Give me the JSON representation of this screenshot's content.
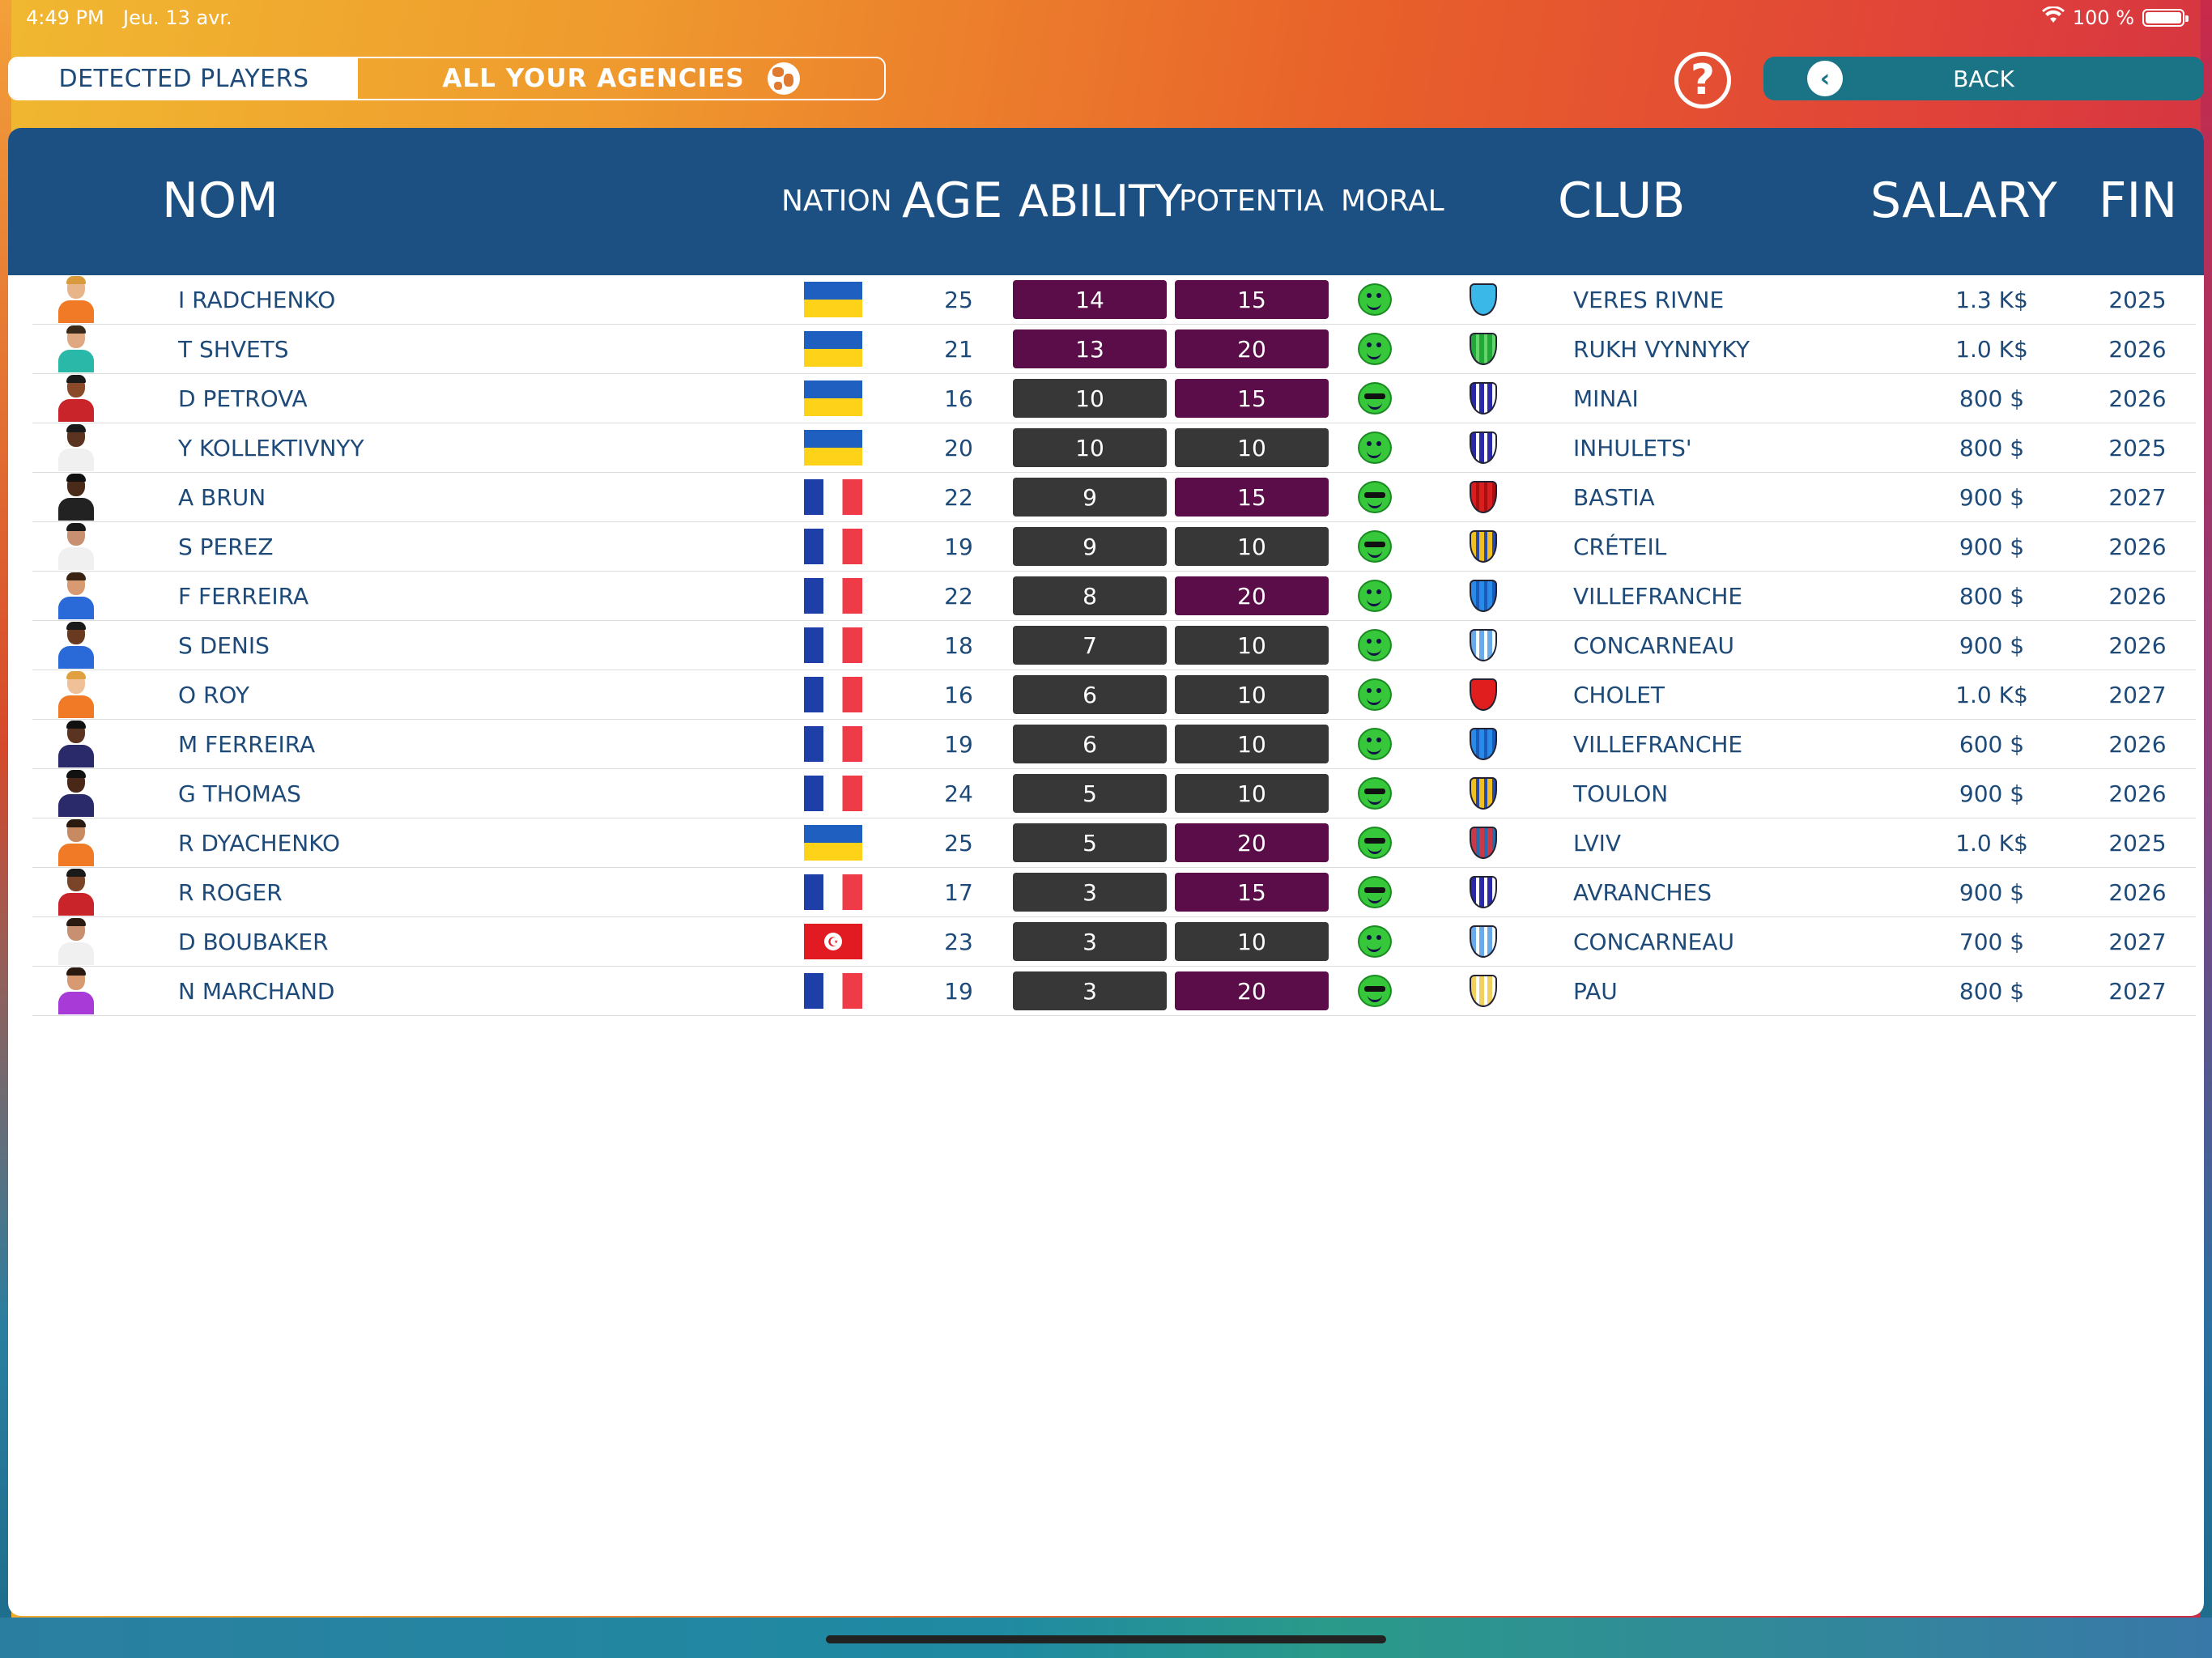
{
  "status": {
    "time": "4:49 PM",
    "date": "Jeu. 13 avr.",
    "battery": "100 %"
  },
  "nav": {
    "tab_detected": "DETECTED PLAYERS",
    "tab_agencies": "ALL YOUR AGENCIES",
    "help": "?",
    "back": "BACK"
  },
  "table": {
    "headers": {
      "name": "NOM",
      "nation": "NATION",
      "age": "AGE",
      "ability": "ABILITY",
      "potential": "POTENTIA",
      "moral": "MORAL",
      "club": "CLUB",
      "salary": "SALARY",
      "fin": "FIN"
    },
    "colors": {
      "purple": "#5b0d4a",
      "dark": "#373737",
      "header": "#1c4f82",
      "text": "#1d4a78"
    },
    "rows": [
      {
        "name": "I RADCHENKO",
        "nation": "ukraine",
        "age": "25",
        "ability": "14",
        "ability_style": "purple",
        "potential": "15",
        "potential_style": "purple",
        "moral": "happy",
        "club": "VERES RIVNE",
        "salary": "1.3 K$",
        "fin": "2025",
        "skin": "#e8b48a",
        "hair": "#d89a3a",
        "shirt": "#f07a25",
        "crest": [
          "#3ab8e8",
          "#3ab8e8"
        ]
      },
      {
        "name": "T SHVETS",
        "nation": "ukraine",
        "age": "21",
        "ability": "13",
        "ability_style": "purple",
        "potential": "20",
        "potential_style": "purple",
        "moral": "happy",
        "club": "RUKH VYNNYKY",
        "salary": "1.0 K$",
        "fin": "2026",
        "skin": "#e0a880",
        "hair": "#3a2a1a",
        "shirt": "#2ab8a8",
        "crest": [
          "#22a838",
          "#66d46a"
        ]
      },
      {
        "name": "D PETROVA",
        "nation": "ukraine",
        "age": "16",
        "ability": "10",
        "ability_style": "dark",
        "potential": "15",
        "potential_style": "purple",
        "moral": "cool",
        "club": "MINAI",
        "salary": "800 $",
        "fin": "2026",
        "skin": "#8a4a2a",
        "hair": "#1a1a1a",
        "shirt": "#c8242a",
        "crest": [
          "#2a2aa8",
          "#ffffff"
        ]
      },
      {
        "name": "Y KOLLEKTIVNYY",
        "nation": "ukraine",
        "age": "20",
        "ability": "10",
        "ability_style": "dark",
        "potential": "10",
        "potential_style": "dark",
        "moral": "happy",
        "club": "INHULETS'",
        "salary": "800 $",
        "fin": "2025",
        "skin": "#5a3420",
        "hair": "#1a1a1a",
        "shirt": "#f0f0f0",
        "crest": [
          "#2a2aa8",
          "#ffffff"
        ]
      },
      {
        "name": "A BRUN",
        "nation": "france",
        "age": "22",
        "ability": "9",
        "ability_style": "dark",
        "potential": "15",
        "potential_style": "purple",
        "moral": "cool",
        "club": "BASTIA",
        "salary": "900 $",
        "fin": "2027",
        "skin": "#4a2a18",
        "hair": "#111111",
        "shirt": "#222222",
        "crest": [
          "#d81e1e",
          "#a81010"
        ]
      },
      {
        "name": "S PEREZ",
        "nation": "france",
        "age": "19",
        "ability": "9",
        "ability_style": "dark",
        "potential": "10",
        "potential_style": "dark",
        "moral": "cool",
        "club": "CRÉTEIL",
        "salary": "900 $",
        "fin": "2026",
        "skin": "#c89070",
        "hair": "#1a1a1a",
        "shirt": "#f0f0f0",
        "crest": [
          "#f0c020",
          "#2a4aa8"
        ]
      },
      {
        "name": "F FERREIRA",
        "nation": "france",
        "age": "22",
        "ability": "8",
        "ability_style": "dark",
        "potential": "20",
        "potential_style": "purple",
        "moral": "happy",
        "club": "VILLEFRANCHE",
        "salary": "800 $",
        "fin": "2026",
        "skin": "#d89a70",
        "hair": "#3a2414",
        "shirt": "#2a6ad8",
        "crest": [
          "#2a8ae8",
          "#1a5ab8"
        ]
      },
      {
        "name": "S DENIS",
        "nation": "france",
        "age": "18",
        "ability": "7",
        "ability_style": "dark",
        "potential": "10",
        "potential_style": "dark",
        "moral": "happy",
        "club": "CONCARNEAU",
        "salary": "900 $",
        "fin": "2026",
        "skin": "#6a3a20",
        "hair": "#1a1a1a",
        "shirt": "#2a6ad8",
        "crest": [
          "#6aaae8",
          "#ffffff"
        ]
      },
      {
        "name": "O ROY",
        "nation": "france",
        "age": "16",
        "ability": "6",
        "ability_style": "dark",
        "potential": "10",
        "potential_style": "dark",
        "moral": "happy",
        "club": "CHOLET",
        "salary": "1.0 K$",
        "fin": "2027",
        "skin": "#f0c098",
        "hair": "#e0a040",
        "shirt": "#f07a25",
        "crest": [
          "#e01e1e",
          "#e01e1e"
        ]
      },
      {
        "name": "M FERREIRA",
        "nation": "france",
        "age": "19",
        "ability": "6",
        "ability_style": "dark",
        "potential": "10",
        "potential_style": "dark",
        "moral": "happy",
        "club": "VILLEFRANCHE",
        "salary": "600 $",
        "fin": "2026",
        "skin": "#5a3420",
        "hair": "#111111",
        "shirt": "#2a2a6a",
        "crest": [
          "#2a8ae8",
          "#1a5ab8"
        ]
      },
      {
        "name": "G THOMAS",
        "nation": "france",
        "age": "24",
        "ability": "5",
        "ability_style": "dark",
        "potential": "10",
        "potential_style": "dark",
        "moral": "cool",
        "club": "TOULON",
        "salary": "900 $",
        "fin": "2026",
        "skin": "#4a2818",
        "hair": "#111111",
        "shirt": "#2a2a6a",
        "crest": [
          "#f0c020",
          "#2a4aa8"
        ]
      },
      {
        "name": "R DYACHENKO",
        "nation": "ukraine",
        "age": "25",
        "ability": "5",
        "ability_style": "dark",
        "potential": "20",
        "potential_style": "purple",
        "moral": "cool",
        "club": "LVIV",
        "salary": "1.0 K$",
        "fin": "2025",
        "skin": "#c88a60",
        "hair": "#2a1a10",
        "shirt": "#f07a25",
        "crest": [
          "#c83a4a",
          "#2a6aa8"
        ]
      },
      {
        "name": "R ROGER",
        "nation": "france",
        "age": "17",
        "ability": "3",
        "ability_style": "dark",
        "potential": "15",
        "potential_style": "purple",
        "moral": "cool",
        "club": "AVRANCHES",
        "salary": "900 $",
        "fin": "2026",
        "skin": "#7a4428",
        "hair": "#1a1a1a",
        "shirt": "#c8242a",
        "crest": [
          "#2a2aa8",
          "#ffffff"
        ]
      },
      {
        "name": "D BOUBAKER",
        "nation": "tunisia",
        "age": "23",
        "ability": "3",
        "ability_style": "dark",
        "potential": "10",
        "potential_style": "dark",
        "moral": "happy",
        "club": "CONCARNEAU",
        "salary": "700 $",
        "fin": "2027",
        "skin": "#c89070",
        "hair": "#2a1a10",
        "shirt": "#f0f0f0",
        "crest": [
          "#6aaae8",
          "#ffffff"
        ]
      },
      {
        "name": "N MARCHAND",
        "nation": "france",
        "age": "19",
        "ability": "3",
        "ability_style": "dark",
        "potential": "20",
        "potential_style": "purple",
        "moral": "cool",
        "club": "PAU",
        "salary": "800 $",
        "fin": "2027",
        "skin": "#d89a70",
        "hair": "#2a1a10",
        "shirt": "#a83ad8",
        "crest": [
          "#f0d060",
          "#ffffff"
        ]
      }
    ]
  }
}
